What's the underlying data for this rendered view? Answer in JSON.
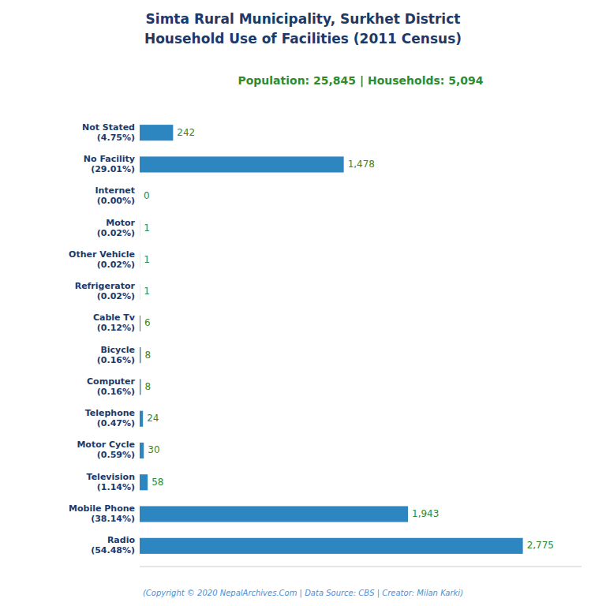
{
  "chart_data": {
    "type": "bar",
    "orientation": "horizontal",
    "title": "Simta Rural Municipality, Surkhet District\nHousehold Use of Facilities (2011 Census)",
    "subtitle": "Population: 25,845 | Households: 5,094",
    "annotations": [
      "(Copyright © 2020 NepalArchives.Com | Data Source: CBS | Creator: Milan Karki)"
    ],
    "categories": [
      "Radio\n(54.48%)",
      "Mobile Phone\n(38.14%)",
      "Television\n(1.14%)",
      "Motor Cycle\n(0.59%)",
      "Telephone\n(0.47%)",
      "Computer\n(0.16%)",
      "Bicycle\n(0.16%)",
      "Cable Tv\n(0.12%)",
      "Refrigerator\n(0.02%)",
      "Other Vehicle\n(0.02%)",
      "Motor\n(0.02%)",
      "Internet\n(0.00%)",
      "No Facility\n(29.01%)",
      "Not Stated\n(4.75%)"
    ],
    "values": [
      2775,
      1943,
      58,
      30,
      24,
      8,
      8,
      6,
      1,
      1,
      1,
      0,
      1478,
      242
    ],
    "value_labels": [
      "2,775",
      "1,943",
      "58",
      "30",
      "24",
      "8",
      "8",
      "6",
      "1",
      "1",
      "1",
      "0",
      "1,478",
      "242"
    ],
    "data_labels": true,
    "color": "#2e86c1",
    "xlim": [
      0,
      3200
    ],
    "grid": false,
    "tick_labels": "y"
  }
}
